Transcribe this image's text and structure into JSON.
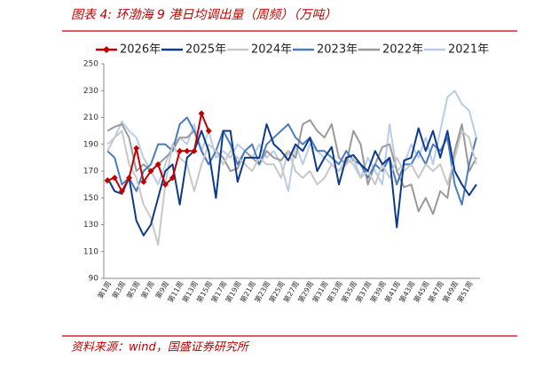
{
  "chart_data": {
    "type": "line",
    "title": "图表 4:  环渤海 9 港日均调出量（周频）（万吨）",
    "source": "资料来源：wind，国盛证券研究所",
    "categories": [
      "第1周",
      null,
      "第3周",
      null,
      "第5周",
      null,
      "第7周",
      null,
      "第9周",
      null,
      "第11周",
      null,
      "第13周",
      null,
      "第15周",
      null,
      "第17周",
      null,
      "第19周",
      null,
      "第21周",
      null,
      "第23周",
      null,
      "第25周",
      null,
      "第27周",
      null,
      "第29周",
      null,
      "第31周",
      null,
      "第33周",
      null,
      "第35周",
      null,
      "第37周",
      null,
      "第39周",
      null,
      "第41周",
      null,
      "第43周",
      null,
      "第45周",
      null,
      "第47周",
      null,
      "第49周",
      null,
      "第51周",
      null
    ],
    "ylim": [
      90,
      250
    ],
    "yticks": [
      90,
      110,
      130,
      150,
      170,
      190,
      210,
      230,
      250
    ],
    "legend": "top",
    "series": [
      {
        "name": "2026年",
        "color": "#c00000",
        "marker": "diamond",
        "values": [
          163,
          165,
          155,
          165,
          187,
          162,
          170,
          175,
          160,
          165,
          185,
          185,
          185,
          213,
          200,
          null,
          null,
          null,
          null,
          null,
          null,
          null,
          null,
          null,
          null,
          null,
          null,
          null,
          null,
          null,
          null,
          null,
          null,
          null,
          null,
          null,
          null,
          null,
          null,
          null,
          null,
          null,
          null,
          null,
          null,
          null,
          null,
          null,
          null,
          null,
          null,
          null
        ]
      },
      {
        "name": "2025年",
        "color": "#0d3a8c",
        "values": [
          165,
          155,
          153,
          165,
          133,
          122,
          130,
          150,
          170,
          175,
          145,
          180,
          185,
          200,
          185,
          150,
          200,
          200,
          162,
          180,
          180,
          180,
          205,
          190,
          185,
          178,
          190,
          185,
          195,
          170,
          180,
          188,
          160,
          180,
          182,
          175,
          170,
          185,
          175,
          180,
          128,
          178,
          180,
          202,
          185,
          200,
          180,
          200,
          170,
          160,
          152,
          160
        ]
      },
      {
        "name": "2024年",
        "color": "#c8c8c8",
        "values": [
          185,
          195,
          200,
          175,
          165,
          145,
          135,
          115,
          160,
          190,
          180,
          175,
          155,
          175,
          190,
          185,
          175,
          185,
          180,
          175,
          170,
          180,
          175,
          175,
          165,
          185,
          170,
          165,
          170,
          160,
          165,
          175,
          170,
          175,
          180,
          165,
          170,
          160,
          175,
          165,
          180,
          170,
          175,
          165,
          175,
          170,
          175,
          160,
          180,
          200,
          195,
          175
        ]
      },
      {
        "name": "2023年",
        "color": "#4a7cc2",
        "values": [
          185,
          180,
          160,
          165,
          155,
          170,
          175,
          190,
          190,
          185,
          205,
          210,
          200,
          185,
          175,
          185,
          200,
          190,
          175,
          185,
          190,
          175,
          190,
          195,
          200,
          205,
          195,
          190,
          195,
          185,
          185,
          180,
          175,
          185,
          178,
          175,
          165,
          175,
          170,
          180,
          160,
          175,
          175,
          185,
          175,
          190,
          185,
          195,
          160,
          145,
          175,
          195
        ]
      },
      {
        "name": "2022年",
        "color": "#999999",
        "values": [
          200,
          203,
          205,
          195,
          170,
          175,
          170,
          175,
          180,
          185,
          195,
          195,
          200,
          185,
          175,
          185,
          180,
          170,
          172,
          185,
          180,
          175,
          185,
          180,
          178,
          185,
          180,
          205,
          208,
          200,
          195,
          205,
          180,
          175,
          200,
          190,
          160,
          175,
          188,
          190,
          170,
          158,
          160,
          140,
          150,
          138,
          155,
          150,
          185,
          205,
          170,
          180
        ]
      },
      {
        "name": "2021年",
        "color": "#b9cde6",
        "values": [
          190,
          195,
          207,
          200,
          195,
          180,
          170,
          160,
          175,
          190,
          195,
          190,
          205,
          185,
          200,
          180,
          185,
          180,
          190,
          185,
          180,
          190,
          180,
          185,
          175,
          155,
          190,
          175,
          190,
          185,
          180,
          175,
          170,
          180,
          175,
          165,
          180,
          170,
          160,
          205,
          170,
          175,
          190,
          180,
          195,
          175,
          200,
          225,
          230,
          220,
          215,
          195
        ]
      }
    ]
  }
}
